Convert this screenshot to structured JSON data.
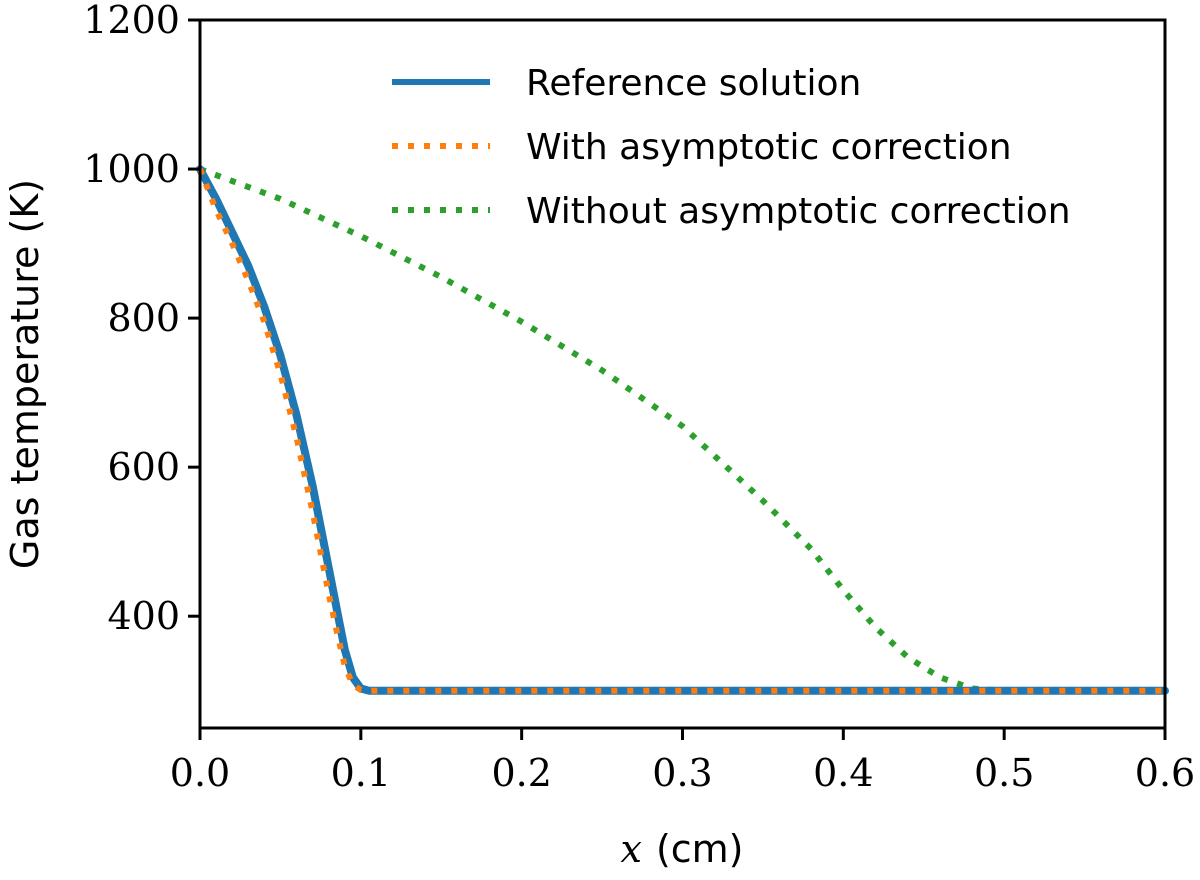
{
  "chart_data": {
    "type": "line",
    "title": "",
    "xlabel": {
      "var": "x",
      "unit": "(cm)"
    },
    "ylabel": "Gas temperature (K)",
    "xlim": [
      0.0,
      0.6
    ],
    "ylim": [
      250,
      1200
    ],
    "x_ticks": [
      0.0,
      0.1,
      0.2,
      0.3,
      0.4,
      0.5,
      0.6
    ],
    "x_tick_labels": [
      "0.0",
      "0.1",
      "0.2",
      "0.3",
      "0.4",
      "0.5",
      "0.6"
    ],
    "y_ticks": [
      400,
      600,
      800,
      1000,
      1200
    ],
    "y_tick_labels": [
      "400",
      "600",
      "800",
      "1000",
      "1200"
    ],
    "grid": false,
    "legend_position": "top-right",
    "series": [
      {
        "name": "Reference solution",
        "color": "#1f77b4",
        "style": "solid",
        "x": [
          0.0,
          0.01,
          0.02,
          0.03,
          0.04,
          0.05,
          0.06,
          0.07,
          0.08,
          0.085,
          0.09,
          0.095,
          0.1,
          0.105,
          0.11,
          0.2,
          0.3,
          0.4,
          0.5,
          0.6
        ],
        "y": [
          1000,
          960,
          915,
          870,
          815,
          750,
          670,
          575,
          465,
          410,
          355,
          318,
          303,
          300,
          300,
          300,
          300,
          300,
          300,
          300
        ]
      },
      {
        "name": "With asymptotic correction",
        "color": "#ff7f0e",
        "style": "dotted",
        "x": [
          0.0,
          0.01,
          0.02,
          0.03,
          0.04,
          0.05,
          0.06,
          0.07,
          0.08,
          0.085,
          0.09,
          0.095,
          0.1,
          0.105,
          0.11,
          0.2,
          0.3,
          0.4,
          0.5,
          0.6
        ],
        "y": [
          1000,
          945,
          900,
          850,
          795,
          725,
          640,
          540,
          430,
          380,
          333,
          308,
          301,
          300,
          300,
          300,
          300,
          300,
          300,
          300
        ]
      },
      {
        "name": "Without asymptotic correction",
        "color": "#2ca02c",
        "style": "dotted",
        "x": [
          0.0,
          0.05,
          0.1,
          0.15,
          0.2,
          0.25,
          0.3,
          0.35,
          0.38,
          0.4,
          0.42,
          0.44,
          0.46,
          0.48,
          0.5,
          0.55,
          0.6
        ],
        "y": [
          1000,
          960,
          910,
          855,
          795,
          730,
          655,
          555,
          490,
          435,
          385,
          345,
          318,
          303,
          300,
          300,
          300
        ]
      }
    ]
  }
}
